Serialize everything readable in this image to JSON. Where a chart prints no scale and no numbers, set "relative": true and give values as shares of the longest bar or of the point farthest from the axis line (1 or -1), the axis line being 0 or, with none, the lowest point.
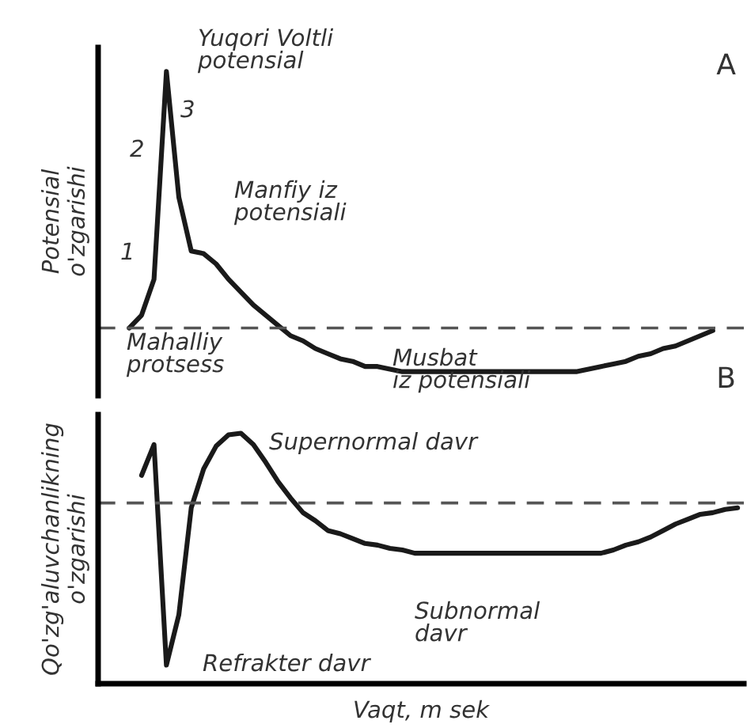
{
  "chart_data": [
    {
      "type": "line",
      "relative": true,
      "ylabel": "Potensial\no'zgarishi",
      "categories": [
        null,
        null,
        null,
        null,
        null,
        null,
        null,
        null,
        null,
        null,
        null,
        null,
        null,
        null,
        null,
        null,
        null,
        null,
        null,
        null,
        null,
        null,
        null,
        null,
        null,
        null,
        null,
        null,
        null,
        null,
        null,
        null,
        null,
        null,
        null,
        null,
        null,
        null,
        null,
        null,
        null,
        null,
        null,
        null,
        null,
        null,
        null,
        null,
        null,
        null,
        null,
        null
      ],
      "series": [
        {
          "color": "#1a1a1a",
          "values": [
            null,
            null,
            0.0,
            0.05,
            0.19,
            1.0,
            0.51,
            0.3,
            0.29,
            0.25,
            0.19,
            0.14,
            0.09,
            0.05,
            0.01,
            -0.03,
            -0.05,
            -0.08,
            -0.1,
            -0.12,
            -0.13,
            -0.15,
            -0.15,
            -0.16,
            -0.17,
            -0.17,
            -0.17,
            -0.17,
            -0.17,
            -0.17,
            -0.17,
            -0.17,
            -0.17,
            -0.17,
            -0.17,
            -0.17,
            -0.17,
            -0.17,
            -0.17,
            -0.16,
            -0.15,
            -0.14,
            -0.13,
            -0.11,
            -0.1,
            -0.08,
            -0.07,
            -0.05,
            -0.03,
            -0.01,
            null,
            null
          ]
        }
      ],
      "ref_lines": [
        {
          "axis": "y",
          "value": 0,
          "line_style": "dashed",
          "color": "#555555"
        }
      ],
      "annotations": [
        "Yuqori Voltli\npotensial",
        "1",
        "2",
        "3",
        "Manfiy iz\npotensiali",
        "Mahalliy\nprotsess",
        "Musbat\niz potensiali",
        "A"
      ]
    },
    {
      "type": "line",
      "relative": true,
      "ylabel": "Qo'zg'aluvchanlikning\no'zgarishi",
      "xlabel": "Vaqt, m sek",
      "categories": [
        null,
        null,
        null,
        null,
        null,
        null,
        null,
        null,
        null,
        null,
        null,
        null,
        null,
        null,
        null,
        null,
        null,
        null,
        null,
        null,
        null,
        null,
        null,
        null,
        null,
        null,
        null,
        null,
        null,
        null,
        null,
        null,
        null,
        null,
        null,
        null,
        null,
        null,
        null,
        null,
        null,
        null,
        null,
        null,
        null,
        null,
        null,
        null,
        null,
        null,
        null,
        null
      ],
      "series": [
        {
          "color": "#1a1a1a",
          "values": [
            null,
            null,
            null,
            0.17,
            0.36,
            -1.0,
            -0.69,
            -0.03,
            0.21,
            0.35,
            0.42,
            0.43,
            0.36,
            0.25,
            0.13,
            0.03,
            -0.06,
            -0.11,
            -0.17,
            -0.19,
            -0.22,
            -0.25,
            -0.26,
            -0.28,
            -0.29,
            -0.31,
            -0.31,
            -0.31,
            -0.31,
            -0.31,
            -0.31,
            -0.31,
            -0.31,
            -0.31,
            -0.31,
            -0.31,
            -0.31,
            -0.31,
            -0.31,
            -0.31,
            -0.31,
            -0.29,
            -0.26,
            -0.24,
            -0.21,
            -0.17,
            -0.13,
            -0.1,
            -0.07,
            -0.06,
            -0.04,
            -0.03
          ]
        }
      ],
      "ref_lines": [
        {
          "axis": "y",
          "value": 0,
          "line_style": "dashed",
          "color": "#555555"
        }
      ],
      "annotations": [
        "B",
        "Supernormal davr",
        "Subnormal\ndavr",
        "Refrakter davr"
      ]
    }
  ]
}
